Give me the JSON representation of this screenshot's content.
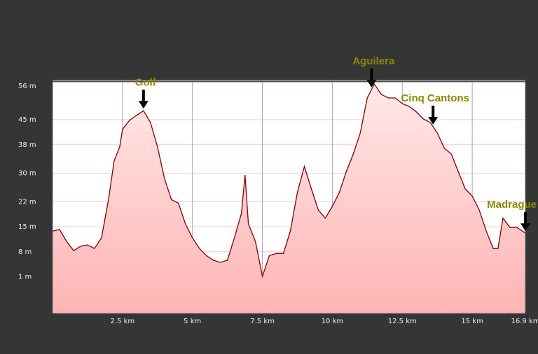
{
  "chart_data": {
    "type": "area",
    "x": [
      0,
      0.25,
      0.5,
      0.75,
      1.0,
      1.25,
      1.5,
      1.75,
      2.0,
      2.2,
      2.4,
      2.5,
      2.75,
      3.0,
      3.25,
      3.5,
      3.75,
      4.0,
      4.25,
      4.5,
      4.75,
      5.0,
      5.25,
      5.5,
      5.75,
      6.0,
      6.25,
      6.5,
      6.75,
      6.88,
      7.0,
      7.25,
      7.5,
      7.75,
      8.0,
      8.25,
      8.5,
      8.75,
      9.0,
      9.25,
      9.5,
      9.75,
      10.0,
      10.25,
      10.5,
      10.75,
      11.0,
      11.25,
      11.5,
      11.75,
      12.0,
      12.25,
      12.5,
      12.75,
      13.0,
      13.25,
      13.5,
      13.75,
      14.0,
      14.25,
      14.5,
      14.75,
      15.0,
      15.25,
      15.5,
      15.75,
      15.92,
      16.1,
      16.35,
      16.6,
      16.9
    ],
    "series": [
      {
        "color": "#800000",
        "values": [
          13.8,
          14.2,
          10.9,
          8.3,
          9.5,
          9.9,
          8.9,
          11.9,
          22.6,
          33.4,
          37.4,
          42.3,
          44.8,
          46.2,
          47.5,
          44.2,
          37.4,
          28.5,
          22.6,
          21.6,
          15.8,
          11.9,
          8.9,
          6.9,
          5.6,
          5.0,
          5.6,
          11.9,
          18.7,
          29.5,
          15.8,
          10.9,
          1.1,
          6.9,
          7.5,
          7.5,
          13.8,
          24.6,
          31.9,
          25.6,
          19.7,
          17.4,
          20.7,
          24.6,
          30.5,
          35.4,
          41.3,
          51.1,
          55.0,
          52.1,
          51.1,
          51.1,
          49.5,
          48.7,
          47.2,
          45.2,
          44.2,
          41.3,
          37.0,
          35.4,
          30.5,
          25.6,
          23.6,
          19.7,
          13.8,
          8.9,
          8.9,
          17.4,
          14.8,
          14.8,
          13.2
        ]
      }
    ],
    "xlim": [
      0,
      16.9
    ],
    "ylim": [
      -9.3,
      55.6
    ],
    "xticks": [
      {
        "value": 2.5,
        "label": "2.5 km"
      },
      {
        "value": 5,
        "label": "5 km"
      },
      {
        "value": 7.5,
        "label": "7.5 km"
      },
      {
        "value": 10,
        "label": "10 km"
      },
      {
        "value": 12.5,
        "label": "12.5 km"
      },
      {
        "value": 15,
        "label": "15 km"
      },
      {
        "value": 16.9,
        "label": "16.9 km"
      }
    ],
    "yticks": [
      {
        "value": 56,
        "label": "56 m"
      },
      {
        "value": 45,
        "label": "45 m"
      },
      {
        "value": 38,
        "label": "38 m"
      },
      {
        "value": 30,
        "label": "30 m"
      },
      {
        "value": 22,
        "label": "22 m"
      },
      {
        "value": 15,
        "label": "15 m"
      },
      {
        "value": 8,
        "label": "8 m"
      },
      {
        "value": 1,
        "label": "1 m"
      }
    ],
    "grid": true,
    "annotations": [
      {
        "label": "Golf",
        "x": 3.25
      },
      {
        "label": "Aguilera",
        "x": 11.4
      },
      {
        "label": "Cinq Cantons",
        "x": 13.6
      },
      {
        "label": "Madrague",
        "x": 16.9
      }
    ]
  }
}
